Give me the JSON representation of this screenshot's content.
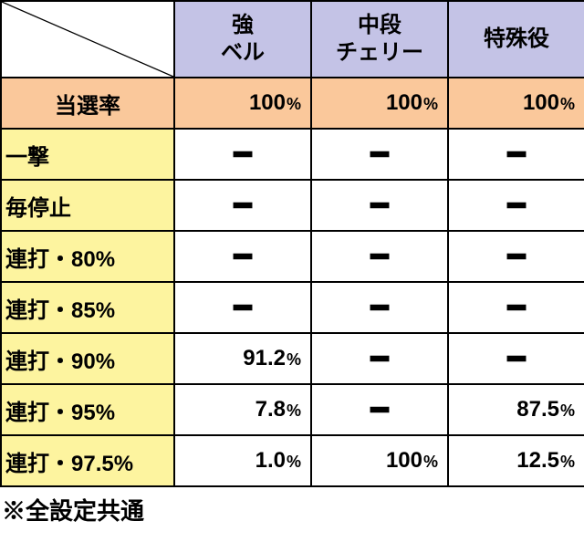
{
  "colors": {
    "header_bg": "#c4c3e6",
    "rate_bg": "#fac89b",
    "label_bg": "#fdf49f",
    "border": "#000000",
    "cell_bg": "#ffffff"
  },
  "columns": [
    {
      "line1": "強",
      "line2": "ベル"
    },
    {
      "line1": "中段",
      "line2": "チェリー"
    },
    {
      "line1": "特殊役",
      "line2": ""
    }
  ],
  "rate_row": {
    "label": "当選率",
    "cells": [
      "100",
      "100",
      "100"
    ]
  },
  "rows": [
    {
      "label": "一撃",
      "cells": [
        "—",
        "—",
        "—"
      ]
    },
    {
      "label": "毎停止",
      "cells": [
        "—",
        "—",
        "—"
      ]
    },
    {
      "label": "連打・80%",
      "cells": [
        "—",
        "—",
        "—"
      ]
    },
    {
      "label": "連打・85%",
      "cells": [
        "—",
        "—",
        "—"
      ]
    },
    {
      "label": "連打・90%",
      "cells": [
        "91.2",
        "—",
        "—"
      ]
    },
    {
      "label": "連打・95%",
      "cells": [
        "7.8",
        "—",
        "87.5"
      ]
    },
    {
      "label": "連打・97.5%",
      "cells": [
        "1.0",
        "100",
        "12.5"
      ]
    }
  ],
  "percent_unit": "%",
  "dash": "━",
  "footnote": "※全設定共通"
}
